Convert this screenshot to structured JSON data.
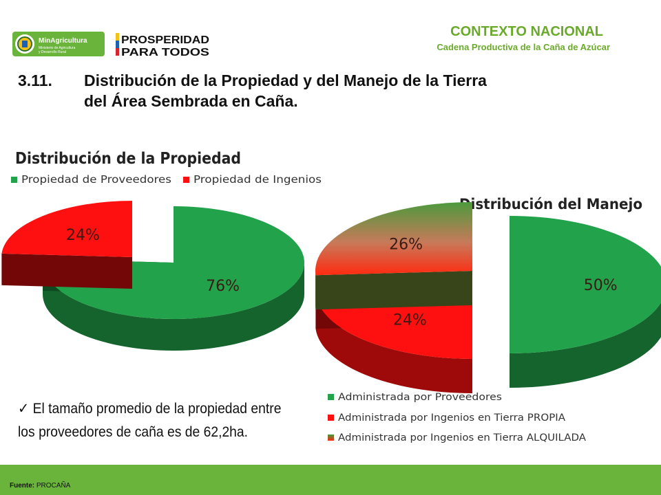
{
  "header": {
    "logo_left_text": "MinAgricultura",
    "logo_left_sub1": "Ministerio de Agricultura",
    "logo_left_sub2": "y Desarrollo Rural",
    "logo_right_line1": "PROSPERIDAD",
    "logo_right_line2": "PARA TODOS",
    "section_title": "CONTEXTO NACIONAL",
    "section_subtitle": "Cadena Productiva de la Caña de Azúcar"
  },
  "heading": {
    "number": "3.11.",
    "line1": "Distribución de la Propiedad y del Manejo de la Tierra",
    "line2": "del Área Sembrada en Caña."
  },
  "chart_data": [
    {
      "type": "pie",
      "title": "Distribución de la Propiedad",
      "legend_position": "top",
      "categories": [
        "Propiedad de Proveedores",
        "Propiedad de Ingenios"
      ],
      "values": [
        76,
        24
      ],
      "labels": [
        "76%",
        "24%"
      ],
      "colors": [
        "#22a24a",
        "#ff1010"
      ]
    },
    {
      "type": "pie",
      "title": "Distribución del Manejo",
      "legend_position": "bottom",
      "categories": [
        "Administrada por Proveedores",
        "Administrada por Ingenios en Tierra PROPIA",
        "Administrada por Ingenios en Tierra ALQUILADA"
      ],
      "values": [
        50,
        24,
        26
      ],
      "labels": [
        "50%",
        "24%",
        "26%"
      ],
      "colors": [
        "#22a24a",
        "#ff1010",
        "#7d9a3a"
      ]
    }
  ],
  "note": {
    "check": "✓",
    "text": "El tamaño promedio de la propiedad entre los proveedores de caña es de 62,2ha."
  },
  "footer": {
    "source_label": "Fuente:",
    "source_value": "PROCAÑA"
  }
}
